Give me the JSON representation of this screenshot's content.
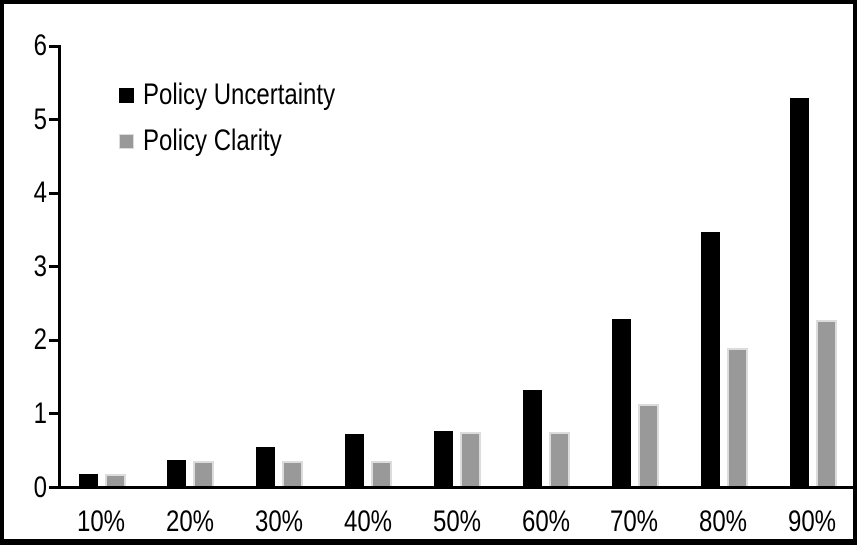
{
  "chart_data": {
    "type": "bar",
    "title": "",
    "xlabel": "",
    "ylabel": "",
    "categories": [
      "10%",
      "20%",
      "30%",
      "40%",
      "50%",
      "60%",
      "70%",
      "80%",
      "90%"
    ],
    "series": [
      {
        "name": "Policy Uncertainty",
        "color": "#000000",
        "values": [
          0.19,
          0.38,
          0.55,
          0.73,
          0.77,
          1.32,
          2.29,
          3.47,
          5.29
        ]
      },
      {
        "name": "Policy Clarity",
        "color": "#999999",
        "border_color": "#dcdcdc",
        "values": [
          0.19,
          0.36,
          0.36,
          0.36,
          0.76,
          0.76,
          1.14,
          1.89,
          2.28
        ]
      }
    ],
    "ylim": [
      0,
      6
    ],
    "y_ticks": [
      0,
      1,
      2,
      3,
      4,
      5,
      6
    ],
    "grid": false,
    "legend_position": "top-left"
  },
  "frame": {
    "background": "#ffffff",
    "border_color": "#000000"
  }
}
